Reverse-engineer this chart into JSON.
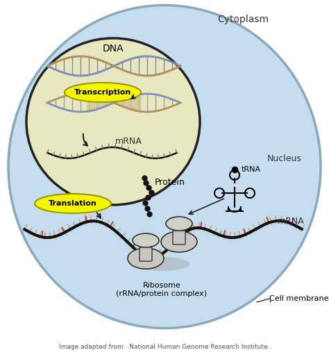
{
  "bg_color": "#ffffff",
  "cell_fill": "#c5ddef",
  "cell_edge": "#8aaabb",
  "nucleus_fill": "#e8e8c0",
  "nucleus_edge": "#222222",
  "yellow_fill": "#f5f500",
  "yellow_edge": "#999900",
  "transcription_text": "Transcription",
  "translation_text": "Translation",
  "dna_text": "DNA",
  "mrna_nucleus_text": "mRNA",
  "mrna_cyto_text": "mRNA",
  "protein_text": "Protein",
  "trna_text": "tRNA",
  "nucleus_text": "Nucleus",
  "cytoplasm_text": "Cytoplasm",
  "ribosome_text": "Ribosome\n(rRNA/protein complex)",
  "cell_membrane_text": "Cell membrane",
  "caption_text": "Image adapted from:  National Human Genome Research Institute.",
  "dna_strand1": "#8090b8",
  "dna_strand2": "#b09060",
  "dna_rung": "#707080",
  "mrna_strand": "#111111",
  "arrow_color": "#222222",
  "tick_color": "#bb3333",
  "tan_tick": "#c8a060",
  "ribosome_fill": "#bbbbbb",
  "ribosome_edge": "#555555",
  "protein_dot": "#111111",
  "text_dark": "#333333",
  "caption_color": "#555555",
  "cell_membrane_line": "#888888"
}
